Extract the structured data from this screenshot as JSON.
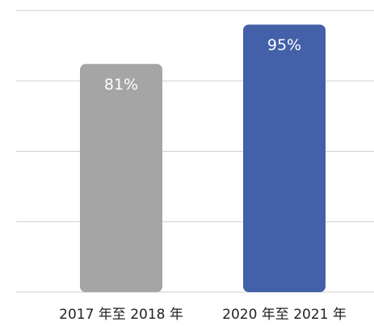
{
  "chart_data": {
    "type": "bar",
    "categories": [
      "2017 年至 2018 年",
      "2020 年至 2021 年"
    ],
    "values": [
      81,
      95
    ],
    "value_labels": [
      "81%",
      "95%"
    ],
    "colors": [
      "#a5a5a5",
      "#4360a8"
    ],
    "ylim": [
      0,
      100
    ],
    "yticks": [
      0,
      25,
      50,
      75,
      100
    ],
    "grid": true
  }
}
